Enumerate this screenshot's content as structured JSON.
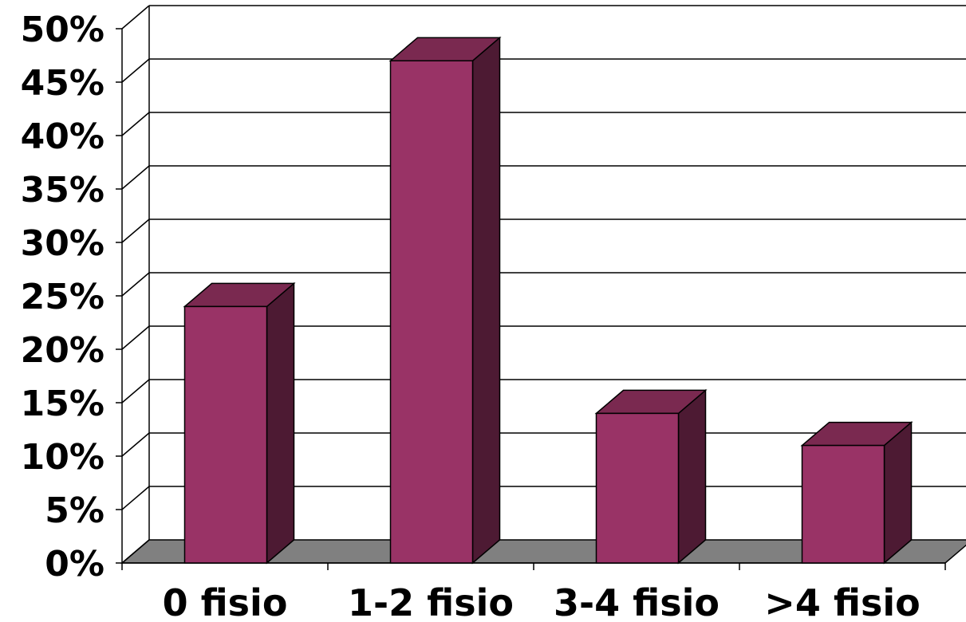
{
  "chart_data": {
    "type": "bar",
    "categories": [
      "0 fisio",
      "1-2 fisio",
      "3-4 fisio",
      ">4 fisio"
    ],
    "values": [
      24,
      47,
      14,
      11
    ],
    "ylim": [
      0,
      50
    ],
    "ytick_step": 5,
    "ytick_suffix": "%",
    "grid": true,
    "style": "3d-column",
    "colors": {
      "bar_front": "#993366",
      "bar_side": "#4d1a33",
      "bar_top": "#7a2950",
      "floor": "#808080",
      "grid": "#000000"
    }
  }
}
